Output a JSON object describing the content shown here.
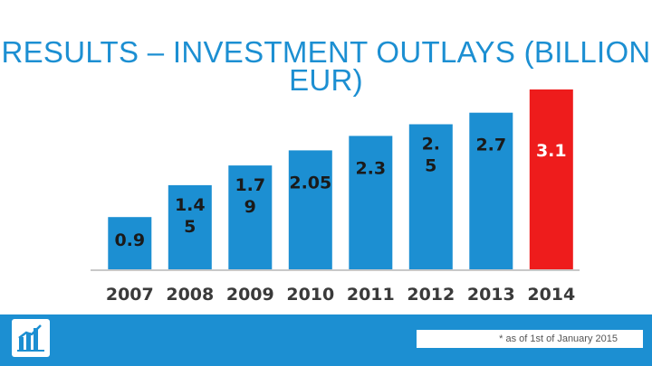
{
  "chart_data": {
    "type": "bar",
    "title": "RESULTS – INVESTMENT OUTLAYS (BILLION EUR)",
    "categories": [
      "2007",
      "2008",
      "2009",
      "2010",
      "2011",
      "2012",
      "2013",
      "2014"
    ],
    "values": [
      0.9,
      1.45,
      1.79,
      2.05,
      2.3,
      2.5,
      2.7,
      3.1
    ],
    "data_labels": [
      "0.9",
      "1.4\n5",
      "1.7\n9",
      "2.05",
      "2.3",
      "2.\n5",
      "2.7",
      "3.1"
    ],
    "ylim": [
      0,
      3.1
    ],
    "grid": false,
    "legend": "none",
    "colors": {
      "bar": "#1c8fd2",
      "highlight_bar": "#ee1c1c",
      "highlight_index": 7,
      "label_on_bar": "#1a1a1a",
      "label_on_highlight": "#ffffff"
    }
  },
  "footer": {
    "note": "* as of 1st of January 2015",
    "logo_icon": "bar-chart-logo-icon",
    "color": "#1c8fd2"
  }
}
